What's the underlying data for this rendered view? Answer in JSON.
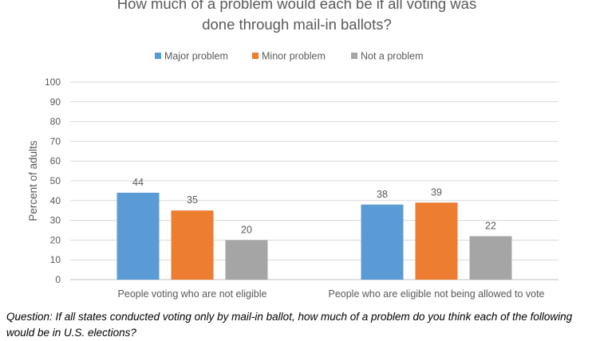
{
  "chart_data": {
    "type": "bar",
    "title_lines": [
      "How much of a problem would each be if all voting was",
      "done through mail-in ballots?"
    ],
    "xlabel": "",
    "ylabel": "Percent of adults",
    "ylim": [
      0,
      100
    ],
    "y_ticks": [
      "0",
      "10",
      "20",
      "30",
      "40",
      "50",
      "60",
      "70",
      "80",
      "90",
      "100"
    ],
    "grid": true,
    "legend_position": "top",
    "categories": [
      "People voting who are not eligible",
      "People who are eligible not being allowed to vote"
    ],
    "series": [
      {
        "name": "Major problem",
        "values": [
          44,
          38
        ],
        "color": "#5b9bd5"
      },
      {
        "name": "Minor problem",
        "values": [
          35,
          39
        ],
        "color": "#ed7d31"
      },
      {
        "name": "Not a problem",
        "values": [
          20,
          22
        ],
        "color": "#a5a5a5"
      }
    ]
  },
  "footnote": "Question: If all states conducted voting only by mail-in ballot, how much of a problem do you think each of the following would be in U.S. elections?"
}
